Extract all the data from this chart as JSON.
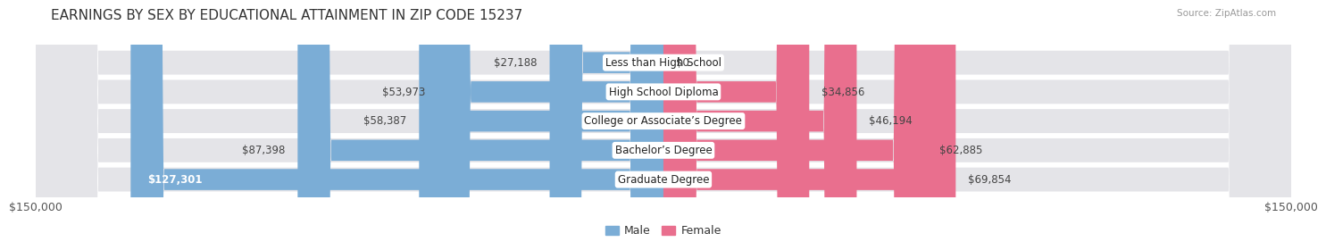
{
  "title": "EARNINGS BY SEX BY EDUCATIONAL ATTAINMENT IN ZIP CODE 15237",
  "source": "Source: ZipAtlas.com",
  "categories": [
    "Less than High School",
    "High School Diploma",
    "College or Associate’s Degree",
    "Bachelor’s Degree",
    "Graduate Degree"
  ],
  "male_values": [
    27188,
    53973,
    58387,
    87398,
    127301
  ],
  "female_values": [
    0,
    34856,
    46194,
    62885,
    69854
  ],
  "male_color": "#7badd6",
  "female_color": "#e96f8e",
  "row_bg_color": "#e4e4e8",
  "row_inner_color": "#ececf0",
  "max_value": 150000,
  "axis_label_left": "$150,000",
  "axis_label_right": "$150,000",
  "title_fontsize": 11,
  "legend_fontsize": 9,
  "value_fontsize": 8.5,
  "category_fontsize": 8.5
}
